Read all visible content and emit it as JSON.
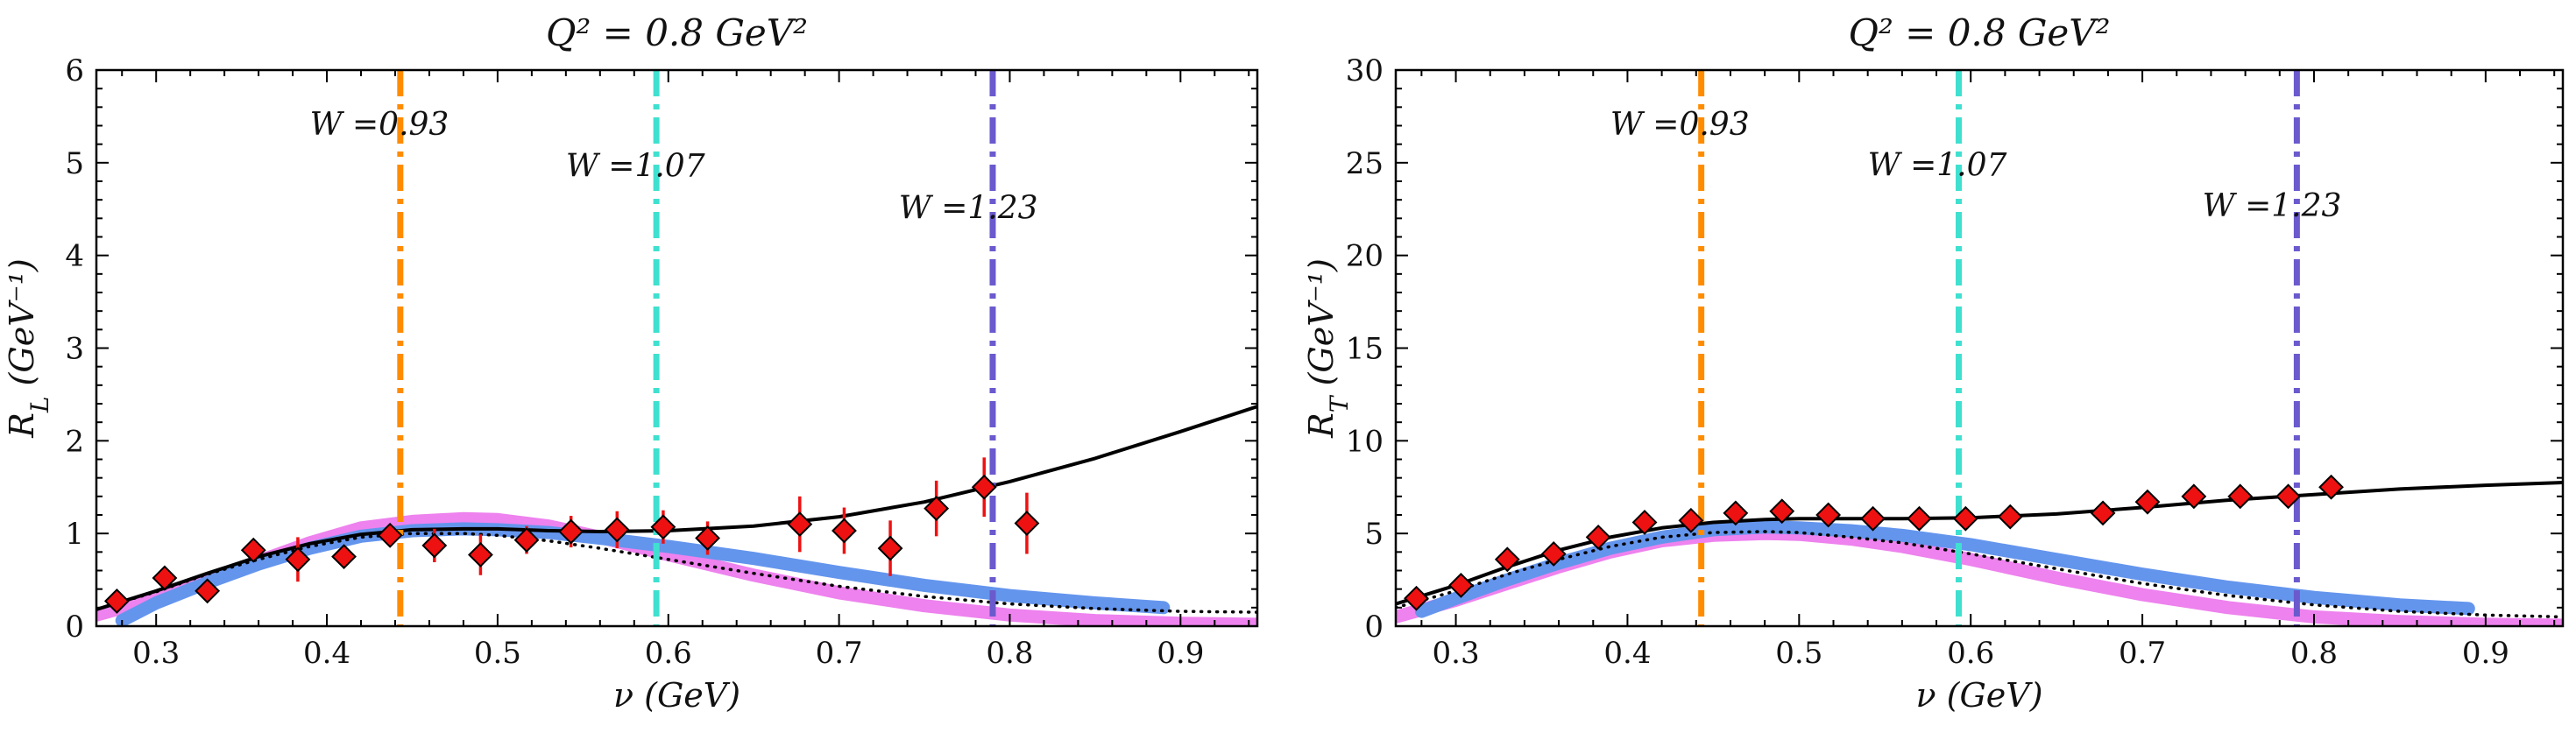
{
  "chart_data": [
    {
      "type": "scatter",
      "title": "Q² = 0.8 GeV²",
      "xlabel": "ν (GeV)",
      "ylabel": "R_L (GeV⁻¹)",
      "xlim": [
        0.265,
        0.945
      ],
      "ylim": [
        0,
        6
      ],
      "xticks": [
        0.3,
        0.4,
        0.5,
        0.6,
        0.7,
        0.8,
        0.9
      ],
      "xtick_labels": [
        "0.3",
        "0.4",
        "0.5",
        "0.6",
        "0.7",
        "0.8",
        "0.9"
      ],
      "yticks": [
        0,
        1,
        2,
        3,
        4,
        5,
        6
      ],
      "ytick_labels": [
        "0",
        "1",
        "2",
        "3",
        "4",
        "5",
        "6"
      ],
      "grid": false,
      "points": {
        "x": [
          0.277,
          0.305,
          0.33,
          0.357,
          0.383,
          0.41,
          0.437,
          0.463,
          0.49,
          0.517,
          0.543,
          0.57,
          0.597,
          0.623,
          0.677,
          0.703,
          0.73,
          0.757,
          0.785,
          0.81
        ],
        "y": [
          0.27,
          0.52,
          0.38,
          0.82,
          0.72,
          0.75,
          0.98,
          0.87,
          0.77,
          0.93,
          1.02,
          1.04,
          1.07,
          0.95,
          1.1,
          1.03,
          0.84,
          1.27,
          1.5,
          1.11
        ],
        "yerr": [
          0.05,
          0.08,
          0.1,
          0.12,
          0.24,
          0.1,
          0.1,
          0.18,
          0.22,
          0.15,
          0.17,
          0.2,
          0.18,
          0.18,
          0.3,
          0.25,
          0.3,
          0.3,
          0.32,
          0.33
        ],
        "color": "#ee1111"
      },
      "curves": [
        {
          "color": "#ee82ee",
          "style": "thick",
          "x": [
            0.265,
            0.3,
            0.33,
            0.36,
            0.39,
            0.42,
            0.45,
            0.48,
            0.5,
            0.53,
            0.56,
            0.6,
            0.65,
            0.7,
            0.75,
            0.8,
            0.85,
            0.9,
            0.945
          ],
          "y": [
            0.12,
            0.3,
            0.5,
            0.7,
            0.9,
            1.06,
            1.13,
            1.16,
            1.15,
            1.08,
            0.96,
            0.77,
            0.55,
            0.36,
            0.22,
            0.12,
            0.06,
            0.03,
            0.02
          ]
        },
        {
          "color": "#6495ed",
          "style": "thick",
          "x": [
            0.28,
            0.3,
            0.33,
            0.36,
            0.39,
            0.42,
            0.45,
            0.48,
            0.5,
            0.53,
            0.56,
            0.6,
            0.65,
            0.7,
            0.75,
            0.8,
            0.85,
            0.89
          ],
          "y": [
            0.06,
            0.25,
            0.47,
            0.67,
            0.84,
            0.97,
            1.03,
            1.05,
            1.04,
            1.01,
            0.95,
            0.86,
            0.73,
            0.58,
            0.44,
            0.33,
            0.25,
            0.2
          ]
        },
        {
          "color": "#000000",
          "style": "dotted",
          "x": [
            0.265,
            0.3,
            0.33,
            0.36,
            0.39,
            0.42,
            0.45,
            0.48,
            0.5,
            0.53,
            0.56,
            0.6,
            0.65,
            0.7,
            0.75,
            0.8,
            0.85,
            0.9,
            0.945
          ],
          "y": [
            0.18,
            0.37,
            0.56,
            0.72,
            0.86,
            0.96,
            1.0,
            1.0,
            0.98,
            0.92,
            0.84,
            0.72,
            0.57,
            0.43,
            0.32,
            0.24,
            0.19,
            0.16,
            0.15
          ]
        },
        {
          "color": "#000000",
          "style": "solid",
          "x": [
            0.265,
            0.3,
            0.33,
            0.36,
            0.39,
            0.42,
            0.45,
            0.48,
            0.5,
            0.53,
            0.56,
            0.6,
            0.65,
            0.7,
            0.75,
            0.8,
            0.85,
            0.9,
            0.945
          ],
          "y": [
            0.18,
            0.38,
            0.57,
            0.75,
            0.89,
            0.99,
            1.04,
            1.05,
            1.05,
            1.03,
            1.02,
            1.03,
            1.08,
            1.18,
            1.34,
            1.56,
            1.81,
            2.1,
            2.37
          ]
        }
      ],
      "vlines": [
        {
          "x": 0.443,
          "color": "#ff8c00",
          "label": "W =0.93",
          "label_x": 0.39,
          "label_y": 5.3
        },
        {
          "x": 0.593,
          "color": "#40e0d0",
          "label": "W =1.07",
          "label_x": 0.54,
          "label_y": 4.85
        },
        {
          "x": 0.79,
          "color": "#6a5acd",
          "label": "W =1.23",
          "label_x": 0.735,
          "label_y": 4.4
        }
      ]
    },
    {
      "type": "scatter",
      "title": "Q² = 0.8 GeV²",
      "xlabel": "ν (GeV)",
      "ylabel": "R_T (GeV⁻¹)",
      "xlim": [
        0.265,
        0.945
      ],
      "ylim": [
        0,
        30
      ],
      "xticks": [
        0.3,
        0.4,
        0.5,
        0.6,
        0.7,
        0.8,
        0.9
      ],
      "xtick_labels": [
        "0.3",
        "0.4",
        "0.5",
        "0.6",
        "0.7",
        "0.8",
        "0.9"
      ],
      "yticks": [
        0,
        5,
        10,
        15,
        20,
        25,
        30
      ],
      "ytick_labels": [
        "0",
        "5",
        "10",
        "15",
        "20",
        "25",
        "30"
      ],
      "grid": false,
      "points": {
        "x": [
          0.277,
          0.303,
          0.33,
          0.357,
          0.383,
          0.41,
          0.437,
          0.463,
          0.49,
          0.517,
          0.543,
          0.57,
          0.597,
          0.623,
          0.677,
          0.703,
          0.73,
          0.757,
          0.785,
          0.81
        ],
        "y": [
          1.5,
          2.2,
          3.6,
          3.9,
          4.8,
          5.6,
          5.7,
          6.1,
          6.2,
          6.0,
          5.8,
          5.8,
          5.8,
          5.9,
          6.1,
          6.7,
          7.0,
          7.0,
          7.0,
          7.5
        ],
        "yerr": [
          0.1,
          0.1,
          0.1,
          0.1,
          0.1,
          0.1,
          0.1,
          0.1,
          0.1,
          0.1,
          0.1,
          0.1,
          0.1,
          0.1,
          0.1,
          0.1,
          0.1,
          0.1,
          0.1,
          0.1
        ],
        "color": "#ee1111"
      },
      "curves": [
        {
          "color": "#ee82ee",
          "style": "thick",
          "x": [
            0.265,
            0.3,
            0.33,
            0.36,
            0.39,
            0.42,
            0.45,
            0.48,
            0.5,
            0.53,
            0.56,
            0.6,
            0.65,
            0.7,
            0.75,
            0.8,
            0.85,
            0.9,
            0.945
          ],
          "y": [
            0.5,
            1.4,
            2.3,
            3.2,
            4.0,
            4.6,
            4.9,
            5.0,
            4.95,
            4.7,
            4.3,
            3.6,
            2.6,
            1.7,
            1.0,
            0.5,
            0.25,
            0.1,
            0.05
          ]
        },
        {
          "color": "#6495ed",
          "style": "thick",
          "x": [
            0.28,
            0.3,
            0.33,
            0.36,
            0.39,
            0.42,
            0.45,
            0.48,
            0.5,
            0.53,
            0.56,
            0.6,
            0.65,
            0.7,
            0.75,
            0.8,
            0.85,
            0.89
          ],
          "y": [
            0.8,
            1.5,
            2.5,
            3.4,
            4.2,
            4.8,
            5.2,
            5.35,
            5.3,
            5.15,
            4.9,
            4.4,
            3.6,
            2.8,
            2.1,
            1.55,
            1.15,
            0.95
          ]
        },
        {
          "color": "#000000",
          "style": "dotted",
          "x": [
            0.265,
            0.3,
            0.33,
            0.36,
            0.39,
            0.42,
            0.45,
            0.48,
            0.5,
            0.53,
            0.56,
            0.6,
            0.65,
            0.7,
            0.75,
            0.8,
            0.85,
            0.9,
            0.945
          ],
          "y": [
            1.0,
            1.9,
            2.8,
            3.6,
            4.3,
            4.8,
            5.05,
            5.1,
            5.05,
            4.8,
            4.5,
            3.9,
            3.1,
            2.3,
            1.65,
            1.15,
            0.8,
            0.6,
            0.5
          ]
        },
        {
          "color": "#000000",
          "style": "solid",
          "x": [
            0.265,
            0.3,
            0.33,
            0.36,
            0.39,
            0.42,
            0.45,
            0.48,
            0.5,
            0.53,
            0.56,
            0.6,
            0.65,
            0.7,
            0.75,
            0.8,
            0.85,
            0.9,
            0.945
          ],
          "y": [
            1.2,
            2.2,
            3.2,
            4.1,
            4.8,
            5.3,
            5.6,
            5.75,
            5.8,
            5.8,
            5.8,
            5.85,
            6.05,
            6.4,
            6.8,
            7.1,
            7.4,
            7.6,
            7.75
          ]
        }
      ],
      "vlines": [
        {
          "x": 0.443,
          "color": "#ff8c00",
          "label": "W =0.93",
          "label_x": 0.39,
          "label_y": 26.5
        },
        {
          "x": 0.593,
          "color": "#40e0d0",
          "label": "W =1.07",
          "label_x": 0.54,
          "label_y": 24.3
        },
        {
          "x": 0.79,
          "color": "#6a5acd",
          "label": "W =1.23",
          "label_x": 0.735,
          "label_y": 22.1
        }
      ]
    }
  ]
}
